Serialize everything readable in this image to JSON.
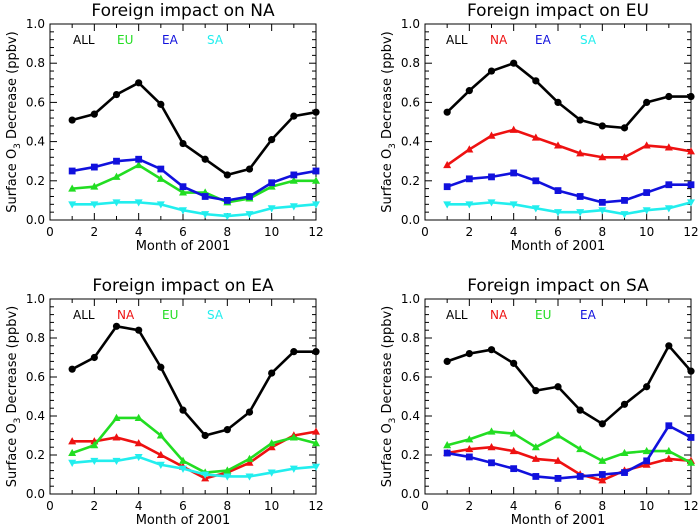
{
  "colors": {
    "ALL": "#000000",
    "NA": "#ee1111",
    "EU": "#22dd22",
    "EA": "#1111dd",
    "SA": "#22eeee"
  },
  "chart_data": [
    {
      "type": "line",
      "title": "Foreign impact on NA",
      "xlabel": "Month of 2001",
      "ylabel": "Surface O3 Decrease (ppbv)",
      "xlim": [
        0,
        12
      ],
      "ylim": [
        0,
        1.0
      ],
      "xticks": [
        "0",
        "2",
        "4",
        "6",
        "8",
        "10",
        "12"
      ],
      "yticks": [
        "0.0",
        "0.2",
        "0.4",
        "0.6",
        "0.8",
        "1.0"
      ],
      "legend": "top",
      "x": [
        1,
        2,
        3,
        4,
        5,
        6,
        7,
        8,
        9,
        10,
        11,
        12
      ],
      "series": [
        {
          "name": "ALL",
          "marker": "circle",
          "values": [
            0.51,
            0.54,
            0.64,
            0.7,
            0.59,
            0.39,
            0.31,
            0.23,
            0.26,
            0.41,
            0.53,
            0.55
          ]
        },
        {
          "name": "EU",
          "marker": "triangle",
          "values": [
            0.16,
            0.17,
            0.22,
            0.28,
            0.21,
            0.14,
            0.14,
            0.09,
            0.11,
            0.17,
            0.2,
            0.2
          ]
        },
        {
          "name": "EA",
          "marker": "square",
          "values": [
            0.25,
            0.27,
            0.3,
            0.31,
            0.26,
            0.17,
            0.12,
            0.1,
            0.12,
            0.19,
            0.23,
            0.25
          ]
        },
        {
          "name": "SA",
          "marker": "triangle-down",
          "values": [
            0.08,
            0.08,
            0.09,
            0.09,
            0.08,
            0.05,
            0.03,
            0.02,
            0.03,
            0.06,
            0.07,
            0.08
          ]
        }
      ]
    },
    {
      "type": "line",
      "title": "Foreign impact on EU",
      "xlabel": "Month of 2001",
      "ylabel": "Surface O3 Decrease (ppbv)",
      "xlim": [
        0,
        12
      ],
      "ylim": [
        0,
        1.0
      ],
      "xticks": [
        "0",
        "2",
        "4",
        "6",
        "8",
        "10",
        "12"
      ],
      "yticks": [
        "0.0",
        "0.2",
        "0.4",
        "0.6",
        "0.8",
        "1.0"
      ],
      "legend": "top",
      "x": [
        1,
        2,
        3,
        4,
        5,
        6,
        7,
        8,
        9,
        10,
        11,
        12
      ],
      "series": [
        {
          "name": "ALL",
          "marker": "circle",
          "values": [
            0.55,
            0.66,
            0.76,
            0.8,
            0.71,
            0.6,
            0.51,
            0.48,
            0.47,
            0.6,
            0.63,
            0.63
          ]
        },
        {
          "name": "NA",
          "marker": "triangle",
          "values": [
            0.28,
            0.36,
            0.43,
            0.46,
            0.42,
            0.38,
            0.34,
            0.32,
            0.32,
            0.38,
            0.37,
            0.35
          ]
        },
        {
          "name": "EA",
          "marker": "square",
          "values": [
            0.17,
            0.21,
            0.22,
            0.24,
            0.2,
            0.15,
            0.12,
            0.09,
            0.1,
            0.14,
            0.18,
            0.18
          ]
        },
        {
          "name": "SA",
          "marker": "triangle-down",
          "values": [
            0.08,
            0.08,
            0.09,
            0.08,
            0.06,
            0.04,
            0.04,
            0.05,
            0.03,
            0.05,
            0.06,
            0.09
          ]
        }
      ]
    },
    {
      "type": "line",
      "title": "Foreign impact on EA",
      "xlabel": "Month of 2001",
      "ylabel": "Surface O3 Decrease (ppbv)",
      "xlim": [
        0,
        12
      ],
      "ylim": [
        0,
        1.0
      ],
      "xticks": [
        "0",
        "2",
        "4",
        "6",
        "8",
        "10",
        "12"
      ],
      "yticks": [
        "0.0",
        "0.2",
        "0.4",
        "0.6",
        "0.8",
        "1.0"
      ],
      "legend": "top",
      "x": [
        1,
        2,
        3,
        4,
        5,
        6,
        7,
        8,
        9,
        10,
        11,
        12
      ],
      "series": [
        {
          "name": "ALL",
          "marker": "circle",
          "values": [
            0.64,
            0.7,
            0.86,
            0.84,
            0.65,
            0.43,
            0.3,
            0.33,
            0.42,
            0.62,
            0.73,
            0.73
          ]
        },
        {
          "name": "NA",
          "marker": "triangle",
          "values": [
            0.27,
            0.27,
            0.29,
            0.26,
            0.2,
            0.14,
            0.08,
            0.11,
            0.16,
            0.24,
            0.3,
            0.32
          ]
        },
        {
          "name": "EU",
          "marker": "triangle",
          "values": [
            0.21,
            0.25,
            0.39,
            0.39,
            0.3,
            0.17,
            0.11,
            0.12,
            0.18,
            0.26,
            0.29,
            0.26
          ]
        },
        {
          "name": "SA",
          "marker": "triangle-down",
          "values": [
            0.16,
            0.17,
            0.17,
            0.19,
            0.15,
            0.13,
            0.1,
            0.09,
            0.09,
            0.11,
            0.13,
            0.14
          ]
        }
      ]
    },
    {
      "type": "line",
      "title": "Foreign impact on SA",
      "xlabel": "Month of 2001",
      "ylabel": "Surface O3 Decrease (ppbv)",
      "xlim": [
        0,
        12
      ],
      "ylim": [
        0,
        1.0
      ],
      "xticks": [
        "0",
        "2",
        "4",
        "6",
        "8",
        "10",
        "12"
      ],
      "yticks": [
        "0.0",
        "0.2",
        "0.4",
        "0.6",
        "0.8",
        "1.0"
      ],
      "legend": "top",
      "x": [
        1,
        2,
        3,
        4,
        5,
        6,
        7,
        8,
        9,
        10,
        11,
        12
      ],
      "series": [
        {
          "name": "ALL",
          "marker": "circle",
          "values": [
            0.68,
            0.72,
            0.74,
            0.67,
            0.53,
            0.55,
            0.43,
            0.36,
            0.46,
            0.55,
            0.76,
            0.63
          ]
        },
        {
          "name": "NA",
          "marker": "triangle",
          "values": [
            0.21,
            0.23,
            0.24,
            0.22,
            0.18,
            0.17,
            0.1,
            0.07,
            0.12,
            0.15,
            0.18,
            0.17
          ]
        },
        {
          "name": "EU",
          "marker": "triangle",
          "values": [
            0.25,
            0.28,
            0.32,
            0.31,
            0.24,
            0.3,
            0.23,
            0.17,
            0.21,
            0.22,
            0.22,
            0.16
          ]
        },
        {
          "name": "EA",
          "marker": "square",
          "values": [
            0.21,
            0.19,
            0.16,
            0.13,
            0.09,
            0.08,
            0.09,
            0.1,
            0.11,
            0.17,
            0.35,
            0.29
          ]
        }
      ]
    }
  ]
}
